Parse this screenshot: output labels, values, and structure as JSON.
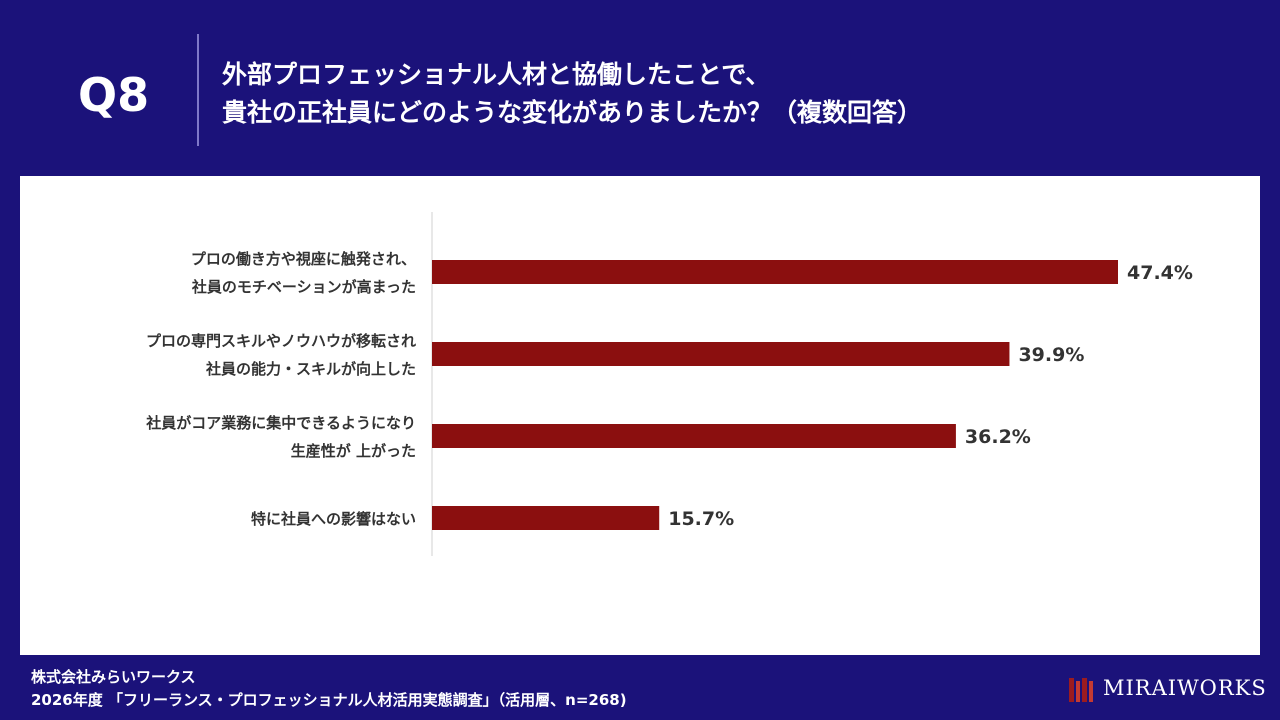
{
  "header": {
    "question_label": "Q8",
    "title_line1": "外部プロフェッショナル人材と協働したことで、",
    "title_line2": "貴社の正社員にどのような変化がありましたか？（複数回答）"
  },
  "chart_data": {
    "type": "bar",
    "orientation": "horizontal",
    "categories": [
      [
        "プロの働き方や視座に触発され、",
        "社員のモチベーションが高まった"
      ],
      [
        "プロの専門スキルやノウハウが移転され",
        "社員の能力・スキルが向上した"
      ],
      [
        "社員がコア業務に集中できるようになり",
        "生産性が 上がった"
      ],
      [
        "特に社員への影響はない"
      ]
    ],
    "values": [
      47.4,
      39.9,
      36.2,
      15.7
    ],
    "data_labels": [
      "47.4%",
      "39.9%",
      "36.2%",
      "15.7%"
    ],
    "unit": "%",
    "bar_color": "#8b0f0f",
    "grid": false,
    "legend": "none"
  },
  "footer": {
    "company": "株式会社みらいワークス",
    "source": "2026年度 「フリーランス・プロフェッショナル人材活用実態調査」（活用層、n=268)"
  },
  "logo": {
    "text": "MIRAIWORKS",
    "mark_color": "#9b1b20",
    "icon": "miraiworks-logo-mark"
  },
  "colors": {
    "background": "#1b127a",
    "panel": "#ffffff",
    "text": "#333333"
  }
}
